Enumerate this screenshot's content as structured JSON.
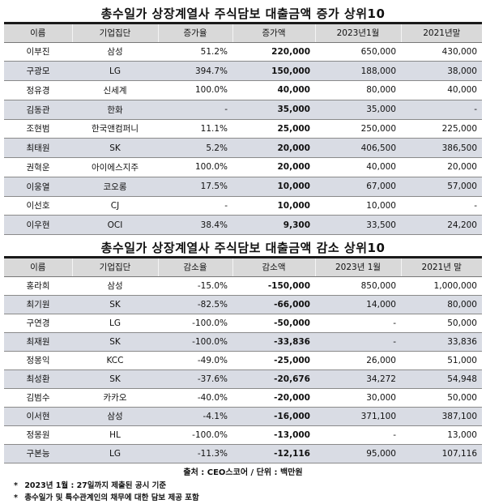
{
  "increase": {
    "title": "총수일가 상장계열사 주식담보 대출금액 증가 상위10",
    "headers": [
      "이름",
      "기업집단",
      "증가율",
      "증가액",
      "2023년1월",
      "2021년말"
    ],
    "rows": [
      [
        "이부진",
        "삼성",
        "51.2%",
        "220,000",
        "650,000",
        "430,000"
      ],
      [
        "구광모",
        "LG",
        "394.7%",
        "150,000",
        "188,000",
        "38,000"
      ],
      [
        "정유경",
        "신세계",
        "100.0%",
        "40,000",
        "80,000",
        "40,000"
      ],
      [
        "김동관",
        "한화",
        "-",
        "35,000",
        "35,000",
        "-"
      ],
      [
        "조현범",
        "한국앤컴퍼니",
        "11.1%",
        "25,000",
        "250,000",
        "225,000"
      ],
      [
        "최태원",
        "SK",
        "5.2%",
        "20,000",
        "406,500",
        "386,500"
      ],
      [
        "권혁운",
        "아이에스지주",
        "100.0%",
        "20,000",
        "40,000",
        "20,000"
      ],
      [
        "이웅열",
        "코오롱",
        "17.5%",
        "10,000",
        "67,000",
        "57,000"
      ],
      [
        "이선호",
        "CJ",
        "-",
        "10,000",
        "10,000",
        "-"
      ],
      [
        "이우현",
        "OCI",
        "38.4%",
        "9,300",
        "33,500",
        "24,200"
      ]
    ]
  },
  "decrease": {
    "title": "총수일가 상장계열사 주식담보 대출금액 감소 상위10",
    "headers": [
      "이름",
      "기업집단",
      "감소율",
      "감소액",
      "2023년 1월",
      "2021년 말"
    ],
    "rows": [
      [
        "홍라희",
        "삼성",
        "-15.0%",
        "-150,000",
        "850,000",
        "1,000,000"
      ],
      [
        "최기원",
        "SK",
        "-82.5%",
        "-66,000",
        "14,000",
        "80,000"
      ],
      [
        "구연경",
        "LG",
        "-100.0%",
        "-50,000",
        "-",
        "50,000"
      ],
      [
        "최재원",
        "SK",
        "-100.0%",
        "-33,836",
        "-",
        "33,836"
      ],
      [
        "정몽익",
        "KCC",
        "-49.0%",
        "-25,000",
        "26,000",
        "51,000"
      ],
      [
        "최성환",
        "SK",
        "-37.6%",
        "-20,676",
        "34,272",
        "54,948"
      ],
      [
        "김범수",
        "카카오",
        "-40.0%",
        "-20,000",
        "30,000",
        "50,000"
      ],
      [
        "이서현",
        "삼성",
        "-4.1%",
        "-16,000",
        "371,100",
        "387,100"
      ],
      [
        "정몽원",
        "HL",
        "-100.0%",
        "-13,000",
        "-",
        "13,000"
      ],
      [
        "구본능",
        "LG",
        "-11.3%",
        "-12,116",
        "95,000",
        "107,116"
      ]
    ]
  },
  "footer": {
    "source": "출처 : CEO스코어 / 단위 : 백만원",
    "notes": [
      {
        "bullet": "*",
        "text": "2023년 1월 : 27일까지 제출된 공시 기준"
      },
      {
        "bullet": "*",
        "text": "총수일가 및 특수관계인의 채무에 대한 담보 제공 포함"
      }
    ]
  }
}
